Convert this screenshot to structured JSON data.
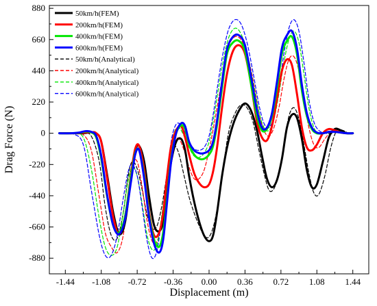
{
  "chart_data": {
    "type": "line",
    "title": "",
    "xlabel": "Displacement (m)",
    "ylabel": "Drag Force (N)",
    "xlim": [
      -1.6,
      1.6
    ],
    "ylim": [
      -990,
      900
    ],
    "xticks": [
      "-1.44",
      "-1.08",
      "-0.72",
      "-0.36",
      "0.00",
      "0.36",
      "0.72",
      "1.08",
      "1.44"
    ],
    "xtick_values": [
      -1.44,
      -1.08,
      -0.72,
      -0.36,
      0.0,
      0.36,
      0.72,
      1.08,
      1.44
    ],
    "yticks": [
      "880",
      "660",
      "440",
      "220",
      "0",
      "-220",
      "-440",
      "-660",
      "-880"
    ],
    "ytick_values": [
      880,
      660,
      440,
      220,
      0,
      -220,
      -440,
      -660,
      -880
    ],
    "grid": false,
    "legend_position": "top-left",
    "series": [
      {
        "name": "50km/h(FEM)",
        "color": "#000000",
        "style": "solid",
        "x": [
          -1.5,
          -1.38,
          -1.3,
          -1.24,
          -1.18,
          -1.13,
          -1.08,
          -1.02,
          -0.96,
          -0.9,
          -0.84,
          -0.78,
          -0.74,
          -0.7,
          -0.65,
          -0.6,
          -0.55,
          -0.5,
          -0.46,
          -0.42,
          -0.38,
          -0.33,
          -0.28,
          -0.24,
          -0.2,
          -0.15,
          -0.1,
          -0.05,
          0.0,
          0.04,
          0.08,
          0.13,
          0.18,
          0.24,
          0.3,
          0.36,
          0.42,
          0.48,
          0.53,
          0.58,
          0.63,
          0.68,
          0.73,
          0.78,
          0.83,
          0.88,
          0.93,
          0.98,
          1.03,
          1.08,
          1.14,
          1.2,
          1.26,
          1.32,
          1.38,
          1.44
        ],
        "y": [
          0,
          0,
          0,
          2,
          8,
          0,
          -60,
          -300,
          -560,
          -710,
          -620,
          -300,
          -120,
          -90,
          -200,
          -450,
          -650,
          -690,
          -620,
          -400,
          -200,
          -60,
          -40,
          -120,
          -300,
          -480,
          -620,
          -720,
          -760,
          -720,
          -560,
          -300,
          -100,
          60,
          160,
          210,
          160,
          20,
          -160,
          -320,
          -380,
          -330,
          -180,
          40,
          130,
          110,
          -40,
          -260,
          -380,
          -360,
          -200,
          -30,
          30,
          20,
          0,
          0
        ]
      },
      {
        "name": "200km/h(FEM)",
        "color": "#ff0000",
        "style": "solid",
        "x": [
          -1.5,
          -1.38,
          -1.3,
          -1.24,
          -1.18,
          -1.13,
          -1.08,
          -1.02,
          -0.96,
          -0.9,
          -0.84,
          -0.78,
          -0.74,
          -0.7,
          -0.65,
          -0.6,
          -0.55,
          -0.5,
          -0.46,
          -0.42,
          -0.38,
          -0.33,
          -0.28,
          -0.24,
          -0.2,
          -0.15,
          -0.1,
          -0.05,
          0.0,
          0.04,
          0.08,
          0.13,
          0.18,
          0.24,
          0.3,
          0.36,
          0.42,
          0.48,
          0.53,
          0.58,
          0.63,
          0.68,
          0.73,
          0.78,
          0.83,
          0.88,
          0.93,
          0.98,
          1.03,
          1.08,
          1.14,
          1.2,
          1.26,
          1.32,
          1.38,
          1.44
        ],
        "y": [
          0,
          0,
          2,
          6,
          8,
          0,
          -60,
          -320,
          -590,
          -710,
          -580,
          -280,
          -110,
          -90,
          -260,
          -560,
          -720,
          -700,
          -560,
          -300,
          -90,
          20,
          50,
          -30,
          -150,
          -280,
          -350,
          -380,
          -360,
          -270,
          -100,
          180,
          420,
          580,
          620,
          560,
          350,
          80,
          -30,
          -50,
          50,
          240,
          440,
          520,
          480,
          280,
          40,
          -100,
          -120,
          -80,
          0,
          30,
          20,
          5,
          0,
          0
        ]
      },
      {
        "name": "400km/h(FEM)",
        "color": "#00e600",
        "style": "solid",
        "x": [
          -1.5,
          -1.38,
          -1.3,
          -1.24,
          -1.18,
          -1.13,
          -1.08,
          -1.02,
          -0.96,
          -0.9,
          -0.84,
          -0.78,
          -0.74,
          -0.7,
          -0.65,
          -0.6,
          -0.55,
          -0.5,
          -0.46,
          -0.42,
          -0.38,
          -0.33,
          -0.28,
          -0.24,
          -0.2,
          -0.15,
          -0.1,
          -0.05,
          0.0,
          0.04,
          0.08,
          0.13,
          0.18,
          0.24,
          0.3,
          0.36,
          0.42,
          0.48,
          0.53,
          0.58,
          0.63,
          0.68,
          0.73,
          0.78,
          0.83,
          0.88,
          0.93,
          0.98,
          1.03,
          1.08,
          1.14,
          1.2,
          1.26,
          1.32,
          1.38,
          1.44
        ],
        "y": [
          0,
          0,
          4,
          12,
          6,
          -30,
          -180,
          -450,
          -650,
          -700,
          -580,
          -300,
          -140,
          -120,
          -300,
          -580,
          -750,
          -800,
          -700,
          -450,
          -180,
          0,
          55,
          30,
          -80,
          -150,
          -180,
          -180,
          -150,
          -90,
          60,
          320,
          560,
          640,
          650,
          580,
          350,
          120,
          20,
          30,
          120,
          320,
          560,
          650,
          680,
          560,
          300,
          120,
          30,
          0,
          0,
          10,
          10,
          5,
          0,
          0
        ]
      },
      {
        "name": "600km/h(FEM)",
        "color": "#0000ff",
        "style": "solid",
        "x": [
          -1.5,
          -1.38,
          -1.3,
          -1.24,
          -1.18,
          -1.13,
          -1.08,
          -1.02,
          -0.96,
          -0.9,
          -0.84,
          -0.78,
          -0.74,
          -0.7,
          -0.65,
          -0.6,
          -0.55,
          -0.5,
          -0.46,
          -0.42,
          -0.38,
          -0.33,
          -0.28,
          -0.24,
          -0.2,
          -0.15,
          -0.1,
          -0.05,
          0.0,
          0.04,
          0.08,
          0.13,
          0.18,
          0.24,
          0.3,
          0.36,
          0.42,
          0.48,
          0.53,
          0.58,
          0.63,
          0.68,
          0.73,
          0.78,
          0.83,
          0.88,
          0.93,
          0.98,
          1.03,
          1.08,
          1.14,
          1.2,
          1.26,
          1.32,
          1.38,
          1.44
        ],
        "y": [
          0,
          0,
          5,
          15,
          10,
          -20,
          -160,
          -440,
          -650,
          -710,
          -600,
          -330,
          -150,
          -120,
          -320,
          -600,
          -780,
          -840,
          -750,
          -480,
          -200,
          0,
          70,
          50,
          -60,
          -120,
          -140,
          -140,
          -120,
          -60,
          90,
          360,
          590,
          680,
          690,
          620,
          400,
          160,
          40,
          40,
          140,
          360,
          600,
          690,
          720,
          600,
          340,
          140,
          40,
          5,
          0,
          10,
          10,
          5,
          0,
          0
        ]
      },
      {
        "name": "50km/h(Analytical)",
        "color": "#000000",
        "style": "dashed",
        "x": [
          -1.5,
          -1.36,
          -1.26,
          -1.18,
          -1.1,
          -1.04,
          -0.98,
          -0.92,
          -0.86,
          -0.81,
          -0.77,
          -0.72,
          -0.67,
          -0.62,
          -0.57,
          -0.52,
          -0.47,
          -0.42,
          -0.38,
          -0.34,
          -0.3,
          -0.25,
          -0.2,
          -0.15,
          -0.1,
          -0.05,
          0.0,
          0.05,
          0.1,
          0.15,
          0.2,
          0.26,
          0.32,
          0.38,
          0.44,
          0.5,
          0.55,
          0.6,
          0.65,
          0.7,
          0.75,
          0.8,
          0.85,
          0.9,
          0.95,
          1.0,
          1.05,
          1.1,
          1.16,
          1.22,
          1.28,
          1.34,
          1.4,
          1.44
        ],
        "y": [
          0,
          0,
          0,
          -20,
          -200,
          -520,
          -720,
          -740,
          -560,
          -300,
          -200,
          -250,
          -400,
          -580,
          -670,
          -650,
          -500,
          -280,
          -110,
          -90,
          -150,
          -300,
          -450,
          -560,
          -650,
          -720,
          -730,
          -640,
          -450,
          -200,
          20,
          140,
          200,
          180,
          80,
          -120,
          -280,
          -400,
          -390,
          -280,
          -80,
          120,
          180,
          100,
          -80,
          -280,
          -420,
          -430,
          -300,
          -100,
          20,
          20,
          0,
          0
        ]
      },
      {
        "name": "200km/h(Analytical)",
        "color": "#ff0000",
        "style": "dashed",
        "x": [
          -1.5,
          -1.36,
          -1.26,
          -1.18,
          -1.1,
          -1.04,
          -0.98,
          -0.92,
          -0.86,
          -0.81,
          -0.77,
          -0.72,
          -0.67,
          -0.62,
          -0.57,
          -0.52,
          -0.47,
          -0.42,
          -0.38,
          -0.34,
          -0.3,
          -0.25,
          -0.2,
          -0.15,
          -0.1,
          -0.05,
          0.0,
          0.05,
          0.1,
          0.15,
          0.2,
          0.26,
          0.32,
          0.38,
          0.44,
          0.5,
          0.55,
          0.6,
          0.65,
          0.7,
          0.75,
          0.8,
          0.85,
          0.9,
          0.95,
          1.0,
          1.05,
          1.1,
          1.16,
          1.22,
          1.28,
          1.34,
          1.4,
          1.44
        ],
        "y": [
          0,
          0,
          -10,
          -120,
          -450,
          -700,
          -800,
          -840,
          -720,
          -420,
          -220,
          -200,
          -380,
          -620,
          -760,
          -760,
          -600,
          -340,
          -140,
          -50,
          -40,
          -120,
          -240,
          -320,
          -320,
          -260,
          -120,
          60,
          260,
          460,
          620,
          680,
          660,
          560,
          380,
          150,
          20,
          -20,
          40,
          180,
          380,
          520,
          540,
          440,
          240,
          40,
          -80,
          -100,
          -40,
          10,
          20,
          10,
          0,
          0
        ]
      },
      {
        "name": "400km/h(Analytical)",
        "color": "#00e600",
        "style": "dashed",
        "x": [
          -1.5,
          -1.36,
          -1.26,
          -1.18,
          -1.1,
          -1.04,
          -0.98,
          -0.92,
          -0.86,
          -0.81,
          -0.77,
          -0.72,
          -0.67,
          -0.62,
          -0.57,
          -0.52,
          -0.47,
          -0.42,
          -0.38,
          -0.34,
          -0.3,
          -0.25,
          -0.2,
          -0.15,
          -0.1,
          -0.05,
          0.0,
          0.05,
          0.1,
          0.15,
          0.2,
          0.26,
          0.32,
          0.38,
          0.44,
          0.5,
          0.55,
          0.6,
          0.65,
          0.7,
          0.75,
          0.8,
          0.85,
          0.9,
          0.95,
          1.0,
          1.05,
          1.1,
          1.16,
          1.22,
          1.28,
          1.34,
          1.4,
          1.44
        ],
        "y": [
          0,
          0,
          -30,
          -250,
          -600,
          -800,
          -860,
          -800,
          -560,
          -330,
          -240,
          -300,
          -500,
          -720,
          -820,
          -780,
          -560,
          -300,
          -80,
          20,
          40,
          -20,
          -100,
          -160,
          -170,
          -140,
          -60,
          120,
          340,
          540,
          680,
          740,
          700,
          570,
          360,
          150,
          40,
          20,
          100,
          280,
          500,
          660,
          720,
          640,
          420,
          180,
          40,
          0,
          0,
          0,
          10,
          5,
          0,
          0
        ]
      },
      {
        "name": "600km/h(Analytical)",
        "color": "#0000ff",
        "style": "dashed",
        "x": [
          -1.5,
          -1.36,
          -1.26,
          -1.18,
          -1.1,
          -1.04,
          -0.98,
          -0.92,
          -0.86,
          -0.81,
          -0.77,
          -0.72,
          -0.67,
          -0.62,
          -0.57,
          -0.52,
          -0.47,
          -0.42,
          -0.38,
          -0.34,
          -0.3,
          -0.25,
          -0.2,
          -0.15,
          -0.1,
          -0.05,
          0.0,
          0.05,
          0.1,
          0.15,
          0.2,
          0.26,
          0.32,
          0.38,
          0.44,
          0.5,
          0.55,
          0.6,
          0.65,
          0.7,
          0.75,
          0.8,
          0.85,
          0.9,
          0.95,
          1.0,
          1.05,
          1.1,
          1.16,
          1.22,
          1.28,
          1.34,
          1.4,
          1.44
        ],
        "y": [
          0,
          -5,
          -80,
          -400,
          -720,
          -860,
          -860,
          -720,
          -460,
          -270,
          -220,
          -300,
          -520,
          -760,
          -880,
          -820,
          -580,
          -300,
          -60,
          50,
          70,
          20,
          -60,
          -110,
          -120,
          -100,
          -20,
          170,
          400,
          600,
          740,
          800,
          770,
          640,
          430,
          200,
          70,
          40,
          120,
          320,
          560,
          740,
          800,
          720,
          500,
          240,
          80,
          20,
          0,
          0,
          10,
          5,
          0,
          0
        ]
      }
    ]
  }
}
